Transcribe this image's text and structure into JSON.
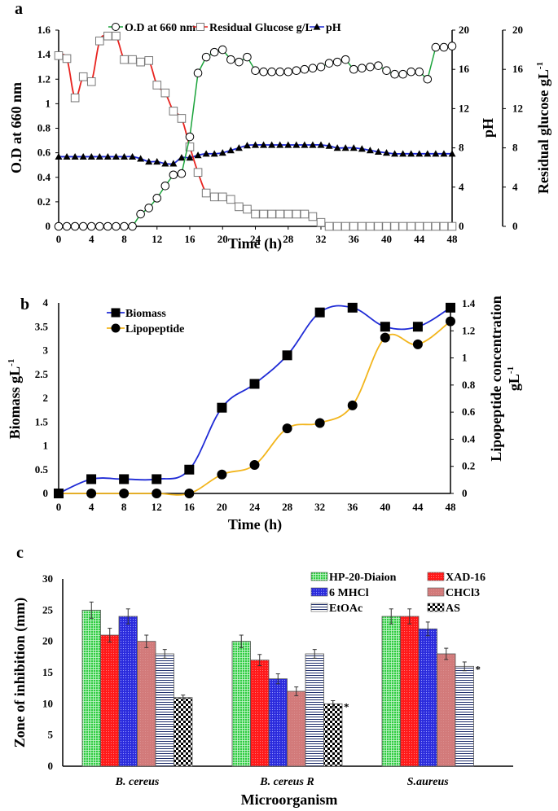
{
  "chart_data": [
    {
      "panel": "a",
      "type": "line",
      "title": "",
      "xlabel": "Time (h)",
      "ylabel": "O.D at 660 nm",
      "y2label": "pH",
      "y3label": "Residual glucose gL-1",
      "xlim": [
        0,
        48
      ],
      "ylim": [
        0,
        1.6
      ],
      "y2lim": [
        0,
        20
      ],
      "y3lim": [
        0,
        20
      ],
      "xticks": [
        "0",
        "4",
        "8",
        "12",
        "16",
        "20",
        "24",
        "28",
        "32",
        "36",
        "40",
        "44",
        "48"
      ],
      "yticks": [
        "0",
        "0.2",
        "0.4",
        "0.6",
        "0.8",
        "1",
        "1.2",
        "1.4",
        "1.6"
      ],
      "y2ticks": [
        "0",
        "4",
        "8",
        "12",
        "16",
        "20"
      ],
      "y3ticks": [
        "0",
        "4",
        "8",
        "12",
        "16",
        "20"
      ],
      "legend_position": "top",
      "x": [
        0,
        1,
        2,
        3,
        4,
        5,
        6,
        7,
        8,
        9,
        10,
        11,
        12,
        13,
        14,
        15,
        16,
        17,
        18,
        19,
        20,
        21,
        22,
        23,
        24,
        25,
        26,
        27,
        28,
        29,
        30,
        31,
        32,
        33,
        34,
        35,
        36,
        37,
        38,
        39,
        40,
        41,
        42,
        43,
        44,
        45,
        46,
        47,
        48
      ],
      "series": [
        {
          "name": "O.D at 660 nm",
          "axis": "left",
          "color": "#1aa33a",
          "marker": "circle",
          "values": [
            0,
            0,
            0,
            0,
            0,
            0,
            0,
            0,
            0,
            0,
            0.1,
            0.15,
            0.23,
            0.33,
            0.42,
            0.43,
            0.73,
            1.25,
            1.38,
            1.42,
            1.44,
            1.36,
            1.34,
            1.38,
            1.27,
            1.26,
            1.26,
            1.26,
            1.26,
            1.27,
            1.28,
            1.29,
            1.3,
            1.33,
            1.34,
            1.36,
            1.28,
            1.29,
            1.3,
            1.31,
            1.27,
            1.24,
            1.24,
            1.26,
            1.26,
            1.2,
            1.46,
            1.46,
            1.47
          ]
        },
        {
          "name": "Residual Glucose g/L",
          "axis": "right-outer",
          "color": "#e8231f",
          "marker": "square",
          "values": [
            17.4,
            17.1,
            13.1,
            15.25,
            14.75,
            18.9,
            19.4,
            19.4,
            17,
            17,
            16.75,
            16.9,
            14.4,
            13.6,
            11.75,
            11,
            8.1,
            5.5,
            3.4,
            3,
            3,
            2.75,
            2,
            1.75,
            1.25,
            1.25,
            1.25,
            1.25,
            1.25,
            1.25,
            1.25,
            1,
            0.4,
            0,
            0,
            0,
            0,
            0,
            0,
            0,
            0,
            0,
            0,
            0,
            0,
            0,
            0,
            0,
            0
          ]
        },
        {
          "name": "pH",
          "axis": "right",
          "color": "#1f2bd6",
          "marker": "triangle",
          "values": [
            7.1,
            7.1,
            7.1,
            7.1,
            7.1,
            7.1,
            7.1,
            7.1,
            7.1,
            7.1,
            6.9,
            6.6,
            6.6,
            6.4,
            6.4,
            7,
            7,
            7.25,
            7.4,
            7.4,
            7.5,
            7.75,
            8,
            8.25,
            8.3,
            8.3,
            8.3,
            8.3,
            8.3,
            8.3,
            8.3,
            8.3,
            8.3,
            8.2,
            8,
            8,
            8,
            7.9,
            7.75,
            7.6,
            7.5,
            7.4,
            7.4,
            7.4,
            7.4,
            7.4,
            7.4,
            7.4,
            7.4
          ]
        }
      ]
    },
    {
      "panel": "b",
      "type": "line",
      "xlabel": "Time (h)",
      "ylabel": "Biomass gL-1",
      "y2label": "Lipopeptide concentration gL-1",
      "xlim": [
        0,
        48
      ],
      "ylim": [
        0,
        4
      ],
      "y2lim": [
        0,
        1.4
      ],
      "xticks": [
        "0",
        "4",
        "8",
        "12",
        "16",
        "20",
        "24",
        "28",
        "32",
        "36",
        "40",
        "44",
        "48"
      ],
      "yticks": [
        "0",
        "0.5",
        "1",
        "1.5",
        "2",
        "2.5",
        "3",
        "3.5",
        "4"
      ],
      "y2ticks": [
        "0",
        "0.2",
        "0.4",
        "0.6",
        "0.8",
        "1",
        "1.2",
        "1.4"
      ],
      "legend_position": "top-left",
      "x": [
        0,
        4,
        8,
        12,
        16,
        20,
        24,
        28,
        32,
        36,
        40,
        44,
        48
      ],
      "series": [
        {
          "name": "Biomass",
          "axis": "left",
          "color": "#1f2bd6",
          "marker": "square",
          "values": [
            0,
            0.3,
            0.3,
            0.3,
            0.5,
            1.8,
            2.3,
            2.9,
            3.8,
            3.9,
            3.5,
            3.5,
            3.9
          ]
        },
        {
          "name": "Lipopeptide",
          "axis": "right",
          "color": "#f2b51c",
          "marker": "circle",
          "values": [
            0,
            0,
            0,
            0,
            0,
            0.14,
            0.21,
            0.48,
            0.52,
            0.65,
            1.15,
            1.1,
            1.27
          ]
        }
      ]
    },
    {
      "panel": "c",
      "type": "bar",
      "xlabel": "Microorganism",
      "ylabel": "Zone of inhibition (mm)",
      "ylim": [
        0,
        30
      ],
      "yticks": [
        "0",
        "5",
        "10",
        "15",
        "20",
        "25",
        "30"
      ],
      "legend_position": "top-right",
      "categories": [
        "B. cereus",
        "B. cereus R",
        "S.aureus"
      ],
      "series": [
        {
          "name": "HP-20-Diaion",
          "color": "#2ecc40",
          "pattern": "grid",
          "values": [
            25,
            20,
            24
          ],
          "errors": [
            1.3,
            1.0,
            1.2
          ]
        },
        {
          "name": "XAD-16",
          "color": "#ff1a1a",
          "pattern": "dots",
          "values": [
            21,
            17,
            24
          ],
          "errors": [
            1.1,
            0.9,
            1.2
          ]
        },
        {
          "name": "6 MHCl",
          "color": "#2b2bdc",
          "pattern": "dots",
          "values": [
            24,
            14,
            22
          ],
          "errors": [
            1.2,
            0.8,
            1.1
          ]
        },
        {
          "name": "CHCl3",
          "color": "#d27a7a",
          "pattern": "fine",
          "values": [
            20,
            12,
            18
          ],
          "errors": [
            1.0,
            0.7,
            0.9
          ]
        },
        {
          "name": "EtOAc",
          "color": "#1e2d6b",
          "pattern": "hlines",
          "values": [
            18,
            18,
            16
          ],
          "errors": [
            0.7,
            0.7,
            0.7
          ]
        },
        {
          "name": "AS",
          "color": "#000000",
          "pattern": "checker",
          "values": [
            11,
            10,
            null
          ],
          "errors": [
            0.4,
            0.5,
            null
          ]
        }
      ],
      "annotations": [
        {
          "text": "*",
          "category": "B. cereus R",
          "series": "AS"
        },
        {
          "text": "*",
          "category": "S.aureus",
          "series": "EtOAc"
        }
      ]
    }
  ],
  "labels": {
    "a": "a",
    "b": "b",
    "c": "c",
    "a_xlabel": "Time (h)",
    "a_ylabel": "O.D at 660 nm",
    "a_y2label": "pH",
    "a_y3label": "Residual glucose gL",
    "a_y3sup": "-1",
    "b_xlabel": "Time (h)",
    "b_ylabel": "Biomass gL",
    "b_ysup": "-1",
    "b_y2label_line1": "Lipopeptide concentration",
    "b_y2label_line2": "gL",
    "b_y2sup": "-1",
    "c_xlabel": "Microorganism",
    "c_ylabel": "Zone of inhibition (mm)"
  }
}
